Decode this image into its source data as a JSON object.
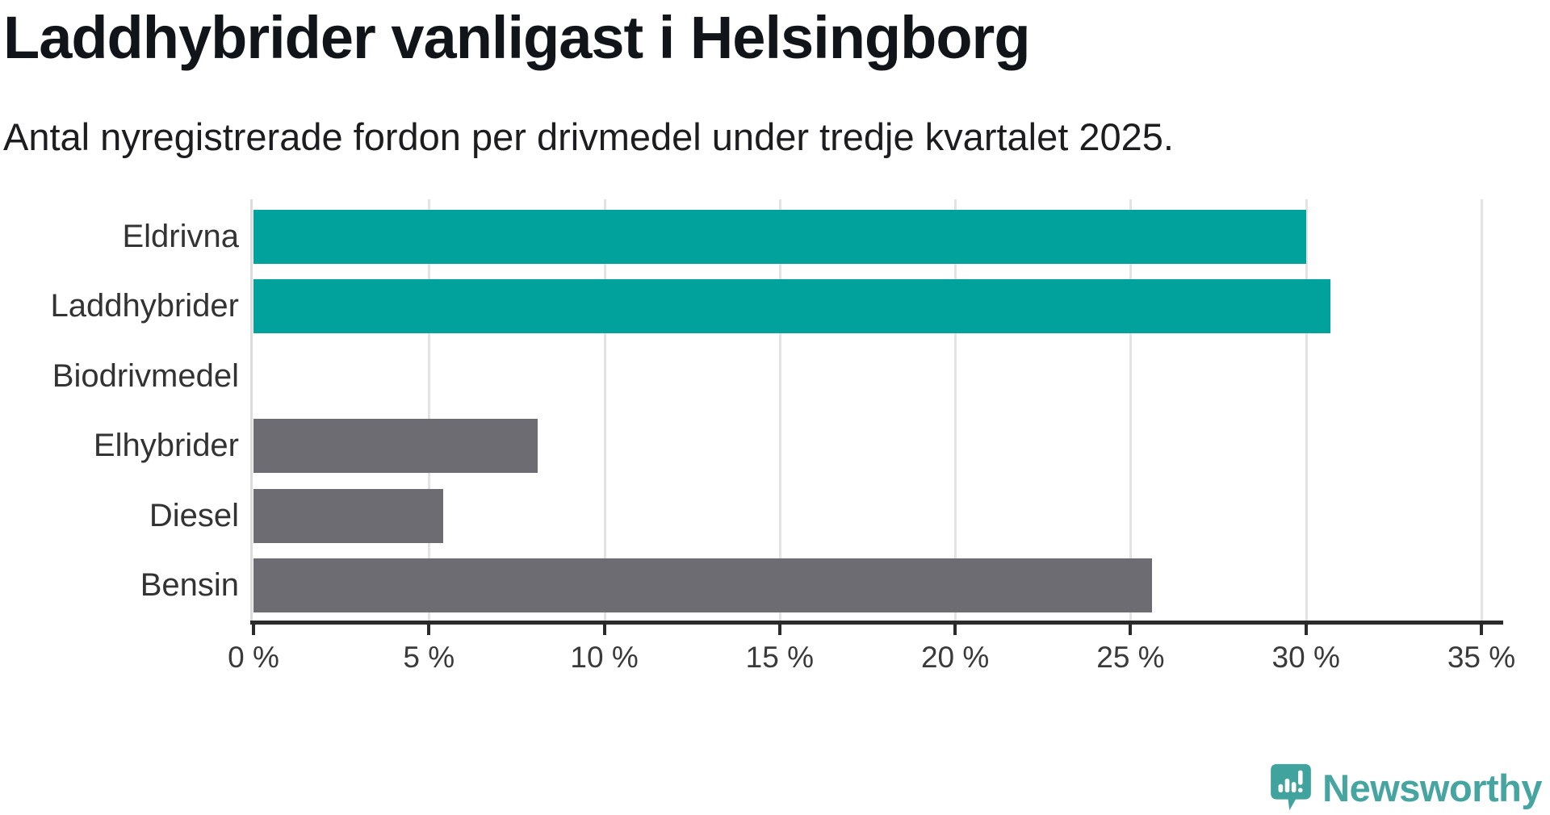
{
  "page": {
    "title": "Laddhybrider vanligast i Helsingborg",
    "subtitle": "Antal nyregistrerade fordon per drivmedel under tredje kvartalet 2025."
  },
  "chart_data": {
    "type": "bar",
    "orientation": "horizontal",
    "title": "Laddhybrider vanligast i Helsingborg",
    "subtitle": "Antal nyregistrerade fordon per drivmedel under tredje kvartalet 2025.",
    "categories": [
      "Eldrivna",
      "Laddhybrider",
      "Biodrivmedel",
      "Elhybrider",
      "Diesel",
      "Bensin"
    ],
    "values": [
      30.0,
      30.7,
      0,
      8.1,
      5.4,
      25.6
    ],
    "unit": "%",
    "bar_colors": [
      "#00a29b",
      "#00a29b",
      "#6c6c72",
      "#6c6c72",
      "#6c6c72",
      "#6c6c72"
    ],
    "highlight_color": "#00a29b",
    "default_color": "#6c6c72",
    "xlim": [
      0,
      35
    ],
    "x_ticks": [
      0,
      5,
      10,
      15,
      20,
      25,
      30,
      35
    ],
    "x_tick_labels": [
      "0 %",
      "5 %",
      "10 %",
      "15 %",
      "20 %",
      "25 %",
      "30 %",
      "35 %"
    ],
    "grid": "vertical",
    "legend": "none",
    "xlabel": "",
    "ylabel": ""
  },
  "branding": {
    "logo_text": "Newsworthy",
    "logo_color": "#46a5a0",
    "logo_icon": "newsworthy-speech-bubble-chart-icon"
  },
  "colors": {
    "accent_teal": "#00a29b",
    "neutral_gray": "#6c6c72",
    "axis_dark": "#2b2b2b",
    "gridline": "#e3e3e3",
    "title_text": "#111418",
    "body_text": "#333333",
    "background": "#ffffff"
  }
}
